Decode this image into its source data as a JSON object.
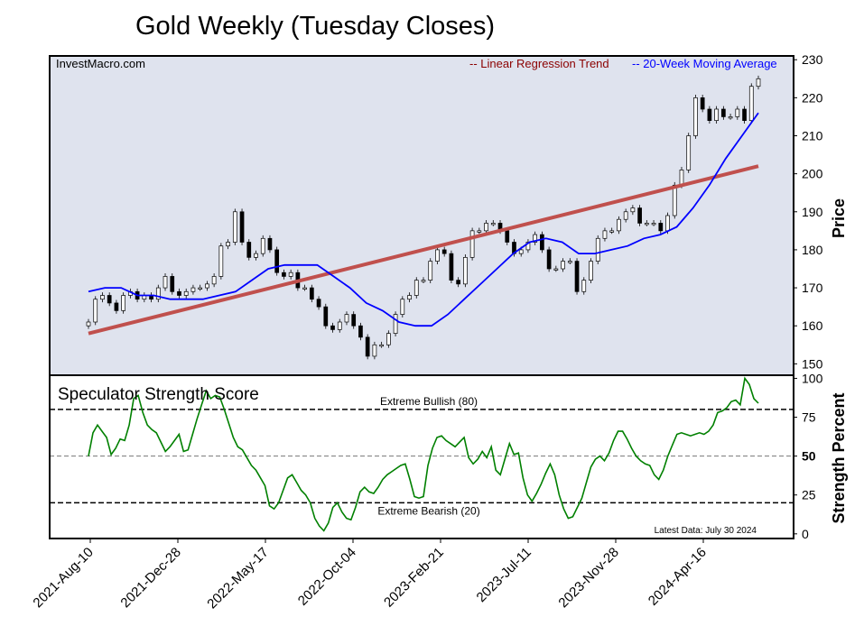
{
  "title": "Gold Weekly (Tuesday Closes)",
  "source": "InvestMacro.com",
  "legend": {
    "regression": "-- Linear Regression Trend",
    "ma": "-- 20-Week Moving Average"
  },
  "colors": {
    "panel_bg": "#dfe3ee",
    "regression": "#c0504d",
    "regression_text": "#8b0000",
    "ma": "#0000ff",
    "score": "#008000",
    "candle_up": "#ffffff",
    "candle_down": "#000000"
  },
  "price_axis": {
    "label": "Price",
    "ylim": [
      147,
      231
    ],
    "ticks": [
      150,
      160,
      170,
      180,
      190,
      200,
      210,
      220,
      230
    ]
  },
  "score_axis": {
    "label": "Strength Percent",
    "ylim": [
      -3,
      102
    ],
    "ticks": [
      0,
      25,
      50,
      75,
      100
    ]
  },
  "panel_title": "Speculator Strength Score",
  "thresholds": [
    {
      "value": 80,
      "label": "Extreme Bullish (80)"
    },
    {
      "value": 50,
      "label": ""
    },
    {
      "value": 20,
      "label": "Extreme Bearish (20)"
    }
  ],
  "latest_data": "Latest Data: July 30 2024",
  "x_tick_labels": [
    "2021-Aug-10",
    "2021-Dec-28",
    "2022-May-17",
    "2022-Oct-04",
    "2023-Feb-21",
    "2023-Jul-11",
    "2023-Nov-28",
    "2024-Apr-16"
  ],
  "chart_data": [
    {
      "type": "candlestick",
      "title": "Gold Weekly (Tuesday Closes)",
      "ylabel": "Price",
      "ylim": [
        147,
        231
      ],
      "x_tick_labels": [
        "2021-Aug-10",
        "2021-Dec-28",
        "2022-May-17",
        "2022-Oct-04",
        "2023-Feb-21",
        "2023-Jul-11",
        "2023-Nov-28",
        "2024-Apr-16"
      ],
      "first_week": "2021-Aug-10",
      "last_week": "2024-Jul-30",
      "closes": [
        161,
        167,
        168,
        166,
        164,
        168,
        169,
        167,
        168,
        167,
        170,
        173,
        169,
        168,
        169,
        170,
        170,
        171,
        173,
        181,
        182,
        190,
        182,
        178,
        179,
        183,
        180,
        174,
        173,
        174,
        170,
        170,
        167,
        165,
        160,
        159,
        161,
        163,
        160,
        157,
        152,
        155,
        155,
        158,
        163,
        167,
        168,
        172,
        172,
        177,
        180,
        179,
        172,
        171,
        178,
        185,
        185,
        187,
        187,
        185,
        182,
        179,
        180,
        182,
        184,
        180,
        175,
        175,
        177,
        177,
        169,
        172,
        177,
        183,
        185,
        185,
        188,
        190,
        191,
        187,
        187,
        187,
        185,
        189,
        197,
        201,
        210,
        220,
        217,
        214,
        217,
        215,
        215,
        217,
        214,
        223,
        225
      ],
      "regression_line": [
        158,
        202
      ],
      "moving_average_20w": [
        169,
        170,
        170,
        168,
        168,
        167,
        167,
        167,
        168,
        169,
        172,
        175,
        176,
        176,
        176,
        173,
        170,
        166,
        164,
        161,
        160,
        160,
        163,
        167,
        171,
        175,
        179,
        182,
        183,
        182,
        179,
        179,
        180,
        181,
        183,
        184,
        186,
        191,
        197,
        204,
        210,
        216
      ]
    },
    {
      "type": "line",
      "title": "Speculator Strength Score",
      "ylabel": "Strength Percent",
      "ylim": [
        0,
        100
      ],
      "series": [
        {
          "values": [
            50,
            65,
            70,
            66,
            62,
            51,
            55,
            61,
            60,
            70,
            87,
            89,
            78,
            70,
            67,
            65,
            59,
            53,
            56,
            60,
            64,
            53,
            54,
            64,
            74,
            83,
            92,
            87,
            89,
            88,
            80,
            71,
            62,
            56,
            54,
            49,
            44,
            41,
            36,
            31,
            18,
            16,
            20,
            28,
            36,
            38,
            33,
            28,
            25,
            20,
            10,
            5,
            2,
            7,
            17,
            20,
            14,
            10,
            9,
            17,
            27,
            30,
            27,
            26,
            30,
            35,
            38,
            40,
            42,
            44,
            45,
            35,
            24,
            23,
            24,
            44,
            55,
            62,
            63,
            60,
            58,
            56,
            59,
            62,
            49,
            45,
            48,
            53,
            49,
            56,
            41,
            38,
            48,
            58,
            51,
            52,
            36,
            25,
            21,
            26,
            32,
            39,
            45,
            38,
            25,
            16,
            10,
            11,
            17,
            23,
            33,
            43,
            48,
            50,
            47,
            52,
            60,
            66,
            66,
            61,
            55,
            50,
            47,
            45,
            44,
            38,
            35,
            41,
            50,
            57,
            64,
            65,
            64,
            63,
            64,
            65,
            64,
            66,
            70,
            78,
            79,
            81,
            85,
            86,
            83,
            100,
            96,
            87,
            84
          ]
        }
      ],
      "thresholds": [
        80,
        50,
        20
      ],
      "latest_data": "Latest Data: July 30 2024"
    }
  ]
}
